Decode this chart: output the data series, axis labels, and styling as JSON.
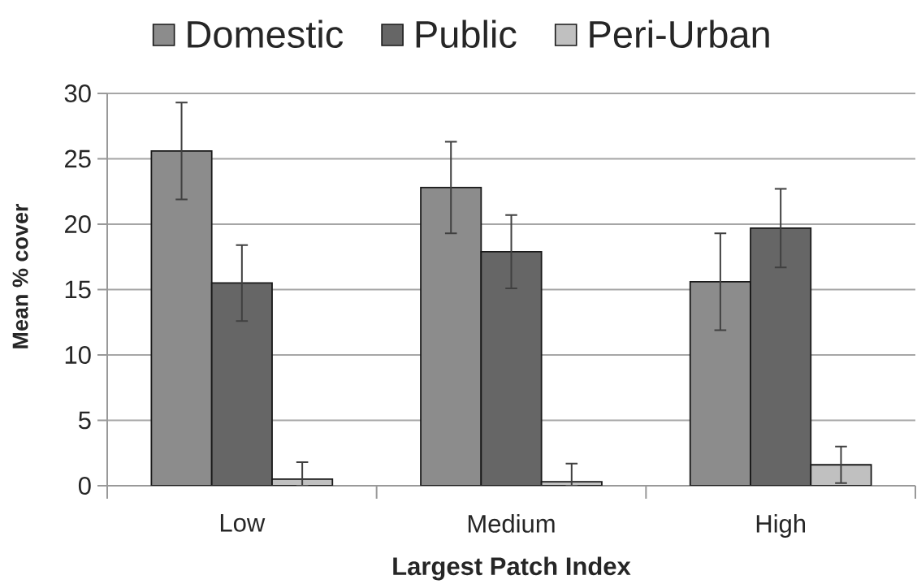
{
  "chart_data": {
    "type": "bar",
    "xlabel": "Largest Patch Index",
    "ylabel": "Mean % cover",
    "categories": [
      "Low",
      "Medium",
      "High"
    ],
    "series": [
      {
        "name": "Domestic",
        "color": "#8c8c8c",
        "values": [
          25.6,
          22.8,
          15.6
        ],
        "errors": [
          3.7,
          3.5,
          3.7
        ]
      },
      {
        "name": "Public",
        "color": "#666666",
        "values": [
          15.5,
          17.9,
          19.7
        ],
        "errors": [
          2.9,
          2.8,
          3.0
        ]
      },
      {
        "name": "Peri-Urban",
        "color": "#c0c0c0",
        "values": [
          0.5,
          0.3,
          1.6
        ],
        "errors": [
          [
            0,
            1.8
          ],
          [
            0,
            1.7
          ],
          1.4
        ]
      }
    ],
    "ylim": [
      0,
      30
    ],
    "yticks": [
      0,
      5,
      10,
      15,
      20,
      25,
      30
    ],
    "grid": "y",
    "legend": "top"
  }
}
